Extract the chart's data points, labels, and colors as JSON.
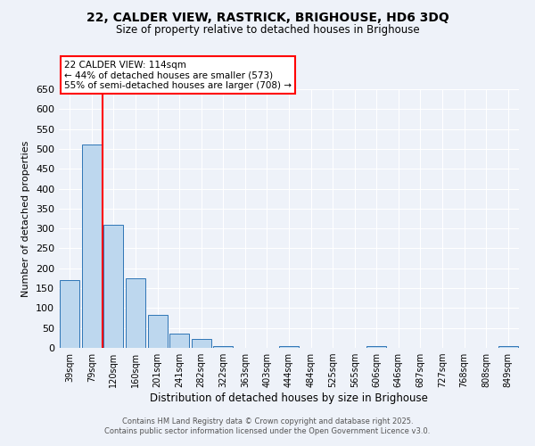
{
  "title": "22, CALDER VIEW, RASTRICK, BRIGHOUSE, HD6 3DQ",
  "subtitle": "Size of property relative to detached houses in Brighouse",
  "xlabel": "Distribution of detached houses by size in Brighouse",
  "ylabel": "Number of detached properties",
  "categories": [
    "39sqm",
    "79sqm",
    "120sqm",
    "160sqm",
    "201sqm",
    "241sqm",
    "282sqm",
    "322sqm",
    "363sqm",
    "403sqm",
    "444sqm",
    "484sqm",
    "525sqm",
    "565sqm",
    "606sqm",
    "646sqm",
    "687sqm",
    "727sqm",
    "768sqm",
    "808sqm",
    "849sqm"
  ],
  "values": [
    170,
    510,
    310,
    175,
    82,
    35,
    22,
    5,
    0,
    0,
    5,
    0,
    0,
    0,
    5,
    0,
    0,
    0,
    0,
    0,
    5
  ],
  "bar_color": "#bdd7ee",
  "bar_edgecolor": "#2e75b6",
  "red_line_index": 2,
  "annotation_text": "22 CALDER VIEW: 114sqm\n← 44% of detached houses are smaller (573)\n55% of semi-detached houses are larger (708) →",
  "annotation_box_color": "white",
  "annotation_box_edgecolor": "red",
  "red_line_color": "red",
  "footer_line1": "Contains HM Land Registry data © Crown copyright and database right 2025.",
  "footer_line2": "Contains public sector information licensed under the Open Government Licence v3.0.",
  "bg_color": "#eef2f9",
  "grid_color": "white",
  "ylim": [
    0,
    650
  ],
  "yticks": [
    0,
    50,
    100,
    150,
    200,
    250,
    300,
    350,
    400,
    450,
    500,
    550,
    600,
    650
  ]
}
